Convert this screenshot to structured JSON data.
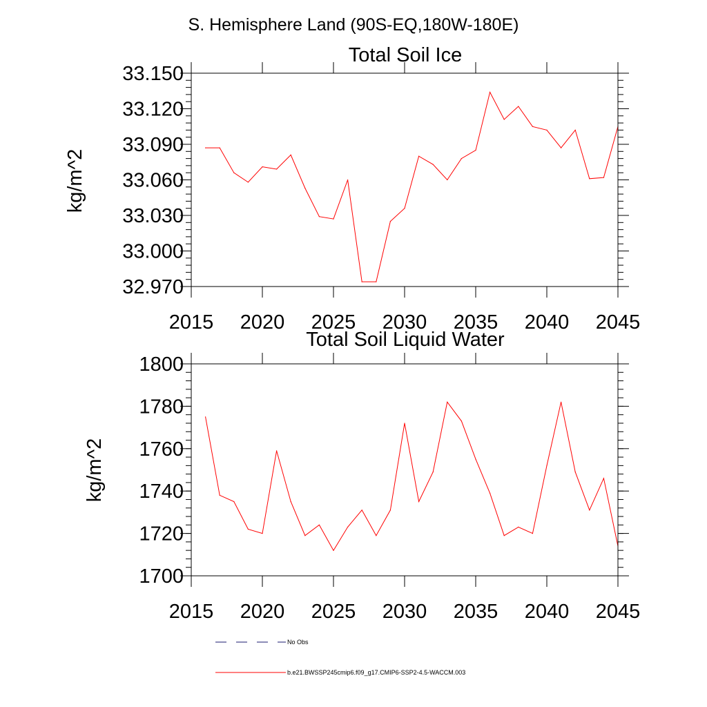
{
  "figure": {
    "supertitle": "S. Hemisphere Land (90S-EQ,180W-180E)"
  },
  "chart_data": [
    {
      "type": "line",
      "title": "Total Soil Ice",
      "ylabel": "kg/m^2",
      "xlabel": "",
      "xlim": [
        2015,
        2045
      ],
      "ylim": [
        32.97,
        33.15
      ],
      "xticks": [
        2015,
        2020,
        2025,
        2030,
        2035,
        2040,
        2045
      ],
      "xtick_labels": [
        "2015",
        "2020",
        "2025",
        "2030",
        "2035",
        "2040",
        "2045"
      ],
      "yticks": [
        32.97,
        33.0,
        33.03,
        33.06,
        33.09,
        33.12,
        33.15
      ],
      "ytick_labels": [
        "32.970",
        "33.000",
        "33.030",
        "33.060",
        "33.090",
        "33.120",
        "33.150"
      ],
      "y_minor_step": 0.006,
      "series": [
        {
          "name": "b.e21.BWSSP245cmip6.f09_g17.CMIP6-SSP2-4.5-WACCM.003",
          "color": "#ff0000",
          "x": [
            2016,
            2017,
            2018,
            2019,
            2020,
            2021,
            2022,
            2023,
            2024,
            2025,
            2026,
            2027,
            2028,
            2029,
            2030,
            2031,
            2032,
            2033,
            2034,
            2035,
            2036,
            2037,
            2038,
            2039,
            2040,
            2041,
            2042,
            2043,
            2044,
            2045
          ],
          "values": [
            33.087,
            33.087,
            33.066,
            33.058,
            33.071,
            33.069,
            33.081,
            33.053,
            33.029,
            33.027,
            33.06,
            32.974,
            32.974,
            33.025,
            33.036,
            33.08,
            33.073,
            33.06,
            33.078,
            33.085,
            33.134,
            33.111,
            33.122,
            33.105,
            33.102,
            33.087,
            33.102,
            33.061,
            33.062,
            33.105
          ]
        }
      ]
    },
    {
      "type": "line",
      "title": "Total Soil Liquid Water",
      "ylabel": "kg/m^2",
      "xlabel": "",
      "xlim": [
        2015,
        2045
      ],
      "ylim": [
        1700,
        1800
      ],
      "xticks": [
        2015,
        2020,
        2025,
        2030,
        2035,
        2040,
        2045
      ],
      "xtick_labels": [
        "2015",
        "2020",
        "2025",
        "2030",
        "2035",
        "2040",
        "2045"
      ],
      "yticks": [
        1700,
        1720,
        1740,
        1760,
        1780,
        1800
      ],
      "ytick_labels": [
        "1700",
        "1720",
        "1740",
        "1760",
        "1780",
        "1800"
      ],
      "y_minor_step": 4,
      "series": [
        {
          "name": "b.e21.BWSSP245cmip6.f09_g17.CMIP6-SSP2-4.5-WACCM.003",
          "color": "#ff0000",
          "x": [
            2016,
            2017,
            2018,
            2019,
            2020,
            2021,
            2022,
            2023,
            2024,
            2025,
            2026,
            2027,
            2028,
            2029,
            2030,
            2031,
            2032,
            2033,
            2034,
            2035,
            2036,
            2037,
            2038,
            2039,
            2040,
            2041,
            2042,
            2043,
            2044,
            2045
          ],
          "values": [
            1775,
            1738,
            1735,
            1722,
            1720,
            1759,
            1735,
            1719,
            1724,
            1712,
            1723,
            1731,
            1719,
            1731,
            1772,
            1735,
            1749,
            1782,
            1773,
            1755,
            1739,
            1719,
            1723,
            1720,
            1752,
            1782,
            1749,
            1731,
            1746,
            1714
          ]
        }
      ]
    }
  ],
  "legend": {
    "items": [
      {
        "label": "No Obs",
        "color": "#1a1a6e",
        "style": "dashed"
      },
      {
        "label": "b.e21.BWSSP245cmip6.f09_g17.CMIP6-SSP2-4.5-WACCM.003",
        "color": "#ff0000",
        "style": "solid"
      }
    ]
  }
}
